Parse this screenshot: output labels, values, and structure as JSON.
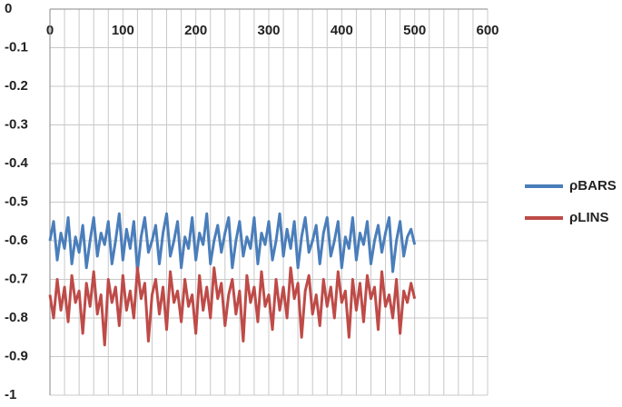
{
  "chart_data": {
    "type": "line",
    "x": [
      0,
      5,
      10,
      15,
      20,
      25,
      30,
      35,
      40,
      45,
      50,
      55,
      60,
      65,
      70,
      75,
      80,
      85,
      90,
      95,
      100,
      105,
      110,
      115,
      120,
      125,
      130,
      135,
      140,
      145,
      150,
      155,
      160,
      165,
      170,
      175,
      180,
      185,
      190,
      195,
      200,
      205,
      210,
      215,
      220,
      225,
      230,
      235,
      240,
      245,
      250,
      255,
      260,
      265,
      270,
      275,
      280,
      285,
      290,
      295,
      300,
      305,
      310,
      315,
      320,
      325,
      330,
      335,
      340,
      345,
      350,
      355,
      360,
      365,
      370,
      375,
      380,
      385,
      390,
      395,
      400,
      405,
      410,
      415,
      420,
      425,
      430,
      435,
      440,
      445,
      450,
      455,
      460,
      465,
      470,
      475,
      480,
      485,
      490,
      495,
      500
    ],
    "series": [
      {
        "name": "ρBARS",
        "color": "#4a7ebb",
        "values": [
          -0.6,
          -0.55,
          -0.65,
          -0.58,
          -0.62,
          -0.54,
          -0.66,
          -0.59,
          -0.63,
          -0.56,
          -0.67,
          -0.6,
          -0.54,
          -0.64,
          -0.58,
          -0.61,
          -0.55,
          -0.66,
          -0.6,
          -0.53,
          -0.65,
          -0.57,
          -0.62,
          -0.55,
          -0.68,
          -0.59,
          -0.54,
          -0.63,
          -0.6,
          -0.56,
          -0.66,
          -0.58,
          -0.53,
          -0.64,
          -0.6,
          -0.55,
          -0.67,
          -0.59,
          -0.62,
          -0.54,
          -0.65,
          -0.58,
          -0.61,
          -0.53,
          -0.66,
          -0.6,
          -0.56,
          -0.63,
          -0.58,
          -0.54,
          -0.67,
          -0.6,
          -0.55,
          -0.64,
          -0.59,
          -0.62,
          -0.54,
          -0.66,
          -0.58,
          -0.61,
          -0.55,
          -0.65,
          -0.6,
          -0.53,
          -0.64,
          -0.57,
          -0.62,
          -0.55,
          -0.67,
          -0.59,
          -0.54,
          -0.63,
          -0.6,
          -0.56,
          -0.66,
          -0.58,
          -0.54,
          -0.64,
          -0.6,
          -0.55,
          -0.67,
          -0.59,
          -0.62,
          -0.54,
          -0.65,
          -0.58,
          -0.61,
          -0.55,
          -0.66,
          -0.6,
          -0.56,
          -0.63,
          -0.58,
          -0.54,
          -0.68,
          -0.6,
          -0.55,
          -0.64,
          -0.59,
          -0.57,
          -0.61
        ]
      },
      {
        "name": "ρLINS",
        "color": "#be4b48",
        "values": [
          -0.74,
          -0.8,
          -0.7,
          -0.78,
          -0.72,
          -0.81,
          -0.69,
          -0.76,
          -0.73,
          -0.84,
          -0.71,
          -0.77,
          -0.68,
          -0.79,
          -0.74,
          -0.87,
          -0.7,
          -0.76,
          -0.72,
          -0.82,
          -0.69,
          -0.78,
          -0.73,
          -0.8,
          -0.67,
          -0.75,
          -0.71,
          -0.86,
          -0.74,
          -0.7,
          -0.79,
          -0.72,
          -0.83,
          -0.68,
          -0.76,
          -0.73,
          -0.81,
          -0.7,
          -0.77,
          -0.74,
          -0.84,
          -0.69,
          -0.78,
          -0.72,
          -0.8,
          -0.67,
          -0.75,
          -0.71,
          -0.82,
          -0.74,
          -0.7,
          -0.79,
          -0.73,
          -0.86,
          -0.69,
          -0.76,
          -0.72,
          -0.81,
          -0.68,
          -0.77,
          -0.74,
          -0.83,
          -0.7,
          -0.78,
          -0.72,
          -0.8,
          -0.67,
          -0.75,
          -0.71,
          -0.85,
          -0.73,
          -0.69,
          -0.79,
          -0.74,
          -0.82,
          -0.7,
          -0.77,
          -0.72,
          -0.8,
          -0.68,
          -0.76,
          -0.73,
          -0.85,
          -0.7,
          -0.78,
          -0.71,
          -0.81,
          -0.69,
          -0.75,
          -0.72,
          -0.83,
          -0.68,
          -0.77,
          -0.74,
          -0.8,
          -0.7,
          -0.84,
          -0.73,
          -0.76,
          -0.71,
          -0.75
        ]
      }
    ],
    "xlim": [
      0,
      600
    ],
    "xticks": [
      0,
      100,
      200,
      300,
      400,
      500,
      600
    ],
    "ylim": [
      -1,
      0
    ],
    "yticks": [
      0,
      -0.1,
      -0.2,
      -0.3,
      -0.4,
      -0.5,
      -0.6,
      -0.7,
      -0.8,
      -0.9,
      -1
    ],
    "grid": true,
    "legend": "right"
  }
}
